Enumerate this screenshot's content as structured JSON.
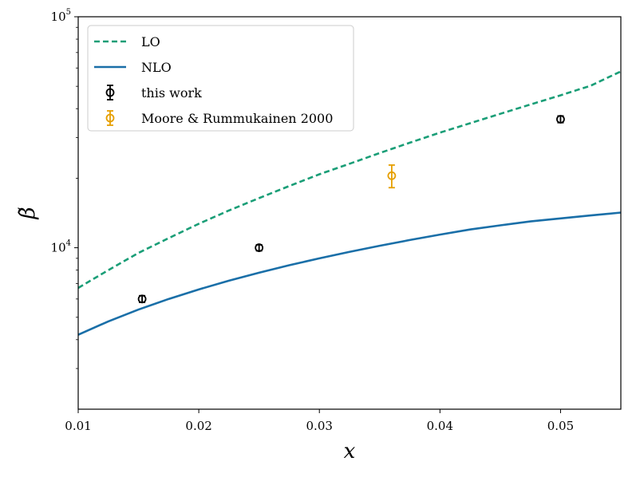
{
  "chart_data": {
    "type": "line",
    "title": "",
    "xlabel": "x",
    "ylabel": "β̃",
    "xscale": "linear",
    "yscale": "log",
    "xlim": [
      0.01,
      0.055
    ],
    "ylim": [
      2000,
      100000
    ],
    "grid": false,
    "legend_position": "top-left",
    "x_ticks": [
      {
        "value": 0.01,
        "label": "0.01"
      },
      {
        "value": 0.02,
        "label": "0.02"
      },
      {
        "value": 0.03,
        "label": "0.03"
      },
      {
        "value": 0.04,
        "label": "0.04"
      },
      {
        "value": 0.05,
        "label": "0.05"
      }
    ],
    "y_ticks": [
      {
        "value": 10000,
        "base": "10",
        "exp": "4"
      },
      {
        "value": 100000,
        "base": "10",
        "exp": "5"
      }
    ],
    "series": [
      {
        "name": "LO",
        "kind": "line",
        "style": "dashed",
        "color": "#1a9e77",
        "x": [
          0.01,
          0.0125,
          0.015,
          0.0175,
          0.02,
          0.0225,
          0.025,
          0.0275,
          0.03,
          0.0325,
          0.035,
          0.0375,
          0.04,
          0.0425,
          0.045,
          0.0475,
          0.05,
          0.0525,
          0.055
        ],
        "y": [
          6700,
          8000,
          9500,
          11000,
          12700,
          14500,
          16400,
          18500,
          20800,
          23100,
          25700,
          28500,
          31500,
          34600,
          38000,
          41700,
          45700,
          50300,
          58000
        ]
      },
      {
        "name": "NLO",
        "kind": "line",
        "style": "solid",
        "color": "#1a6fa8",
        "x": [
          0.01,
          0.0125,
          0.015,
          0.0175,
          0.02,
          0.0225,
          0.025,
          0.0275,
          0.03,
          0.0325,
          0.035,
          0.0375,
          0.04,
          0.0425,
          0.045,
          0.0475,
          0.05,
          0.0525,
          0.055
        ],
        "y": [
          4200,
          4800,
          5400,
          6000,
          6600,
          7200,
          7800,
          8400,
          9000,
          9600,
          10200,
          10800,
          11400,
          12000,
          12500,
          13000,
          13400,
          13800,
          14200
        ]
      },
      {
        "name": "this work",
        "kind": "errorbar",
        "color": "#000000",
        "x": [
          0.0153,
          0.025,
          0.05
        ],
        "y": [
          6000,
          10000,
          36000
        ],
        "err": [
          200,
          300,
          1200
        ]
      },
      {
        "name": "Moore & Rummukainen 2000",
        "kind": "errorbar",
        "color": "#e69f00",
        "x": [
          0.036
        ],
        "y": [
          20500
        ],
        "err": [
          2300
        ]
      }
    ]
  }
}
